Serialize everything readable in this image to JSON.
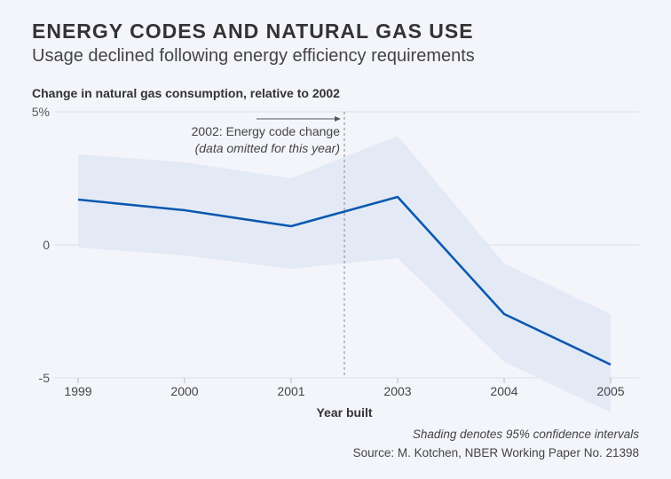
{
  "chart_data": {
    "type": "line",
    "title": "ENERGY CODES AND NATURAL GAS USE",
    "subtitle": "Usage declined following energy efficiency requirements",
    "ylabel": "Change in natural gas consumption, relative to 2002",
    "xlabel": "Year built",
    "categories": [
      "1999",
      "2000",
      "2001",
      "2003",
      "2004",
      "2005"
    ],
    "series": [
      {
        "name": "Change in natural gas consumption",
        "values": [
          1.7,
          1.3,
          0.7,
          1.8,
          -2.6,
          -4.5
        ]
      },
      {
        "name": "95% CI upper",
        "values": [
          3.4,
          3.1,
          2.5,
          4.1,
          -0.7,
          -2.6
        ]
      },
      {
        "name": "95% CI lower",
        "values": [
          -0.1,
          -0.4,
          -0.9,
          -0.5,
          -4.4,
          -6.3
        ]
      }
    ],
    "yticks": [
      {
        "v": 5,
        "label": "5%"
      },
      {
        "v": 0,
        "label": "0"
      },
      {
        "v": -5,
        "label": "-5"
      }
    ],
    "ylim": [
      -5,
      5
    ],
    "annotation": {
      "label": "2002: Energy code change",
      "sublabel": "(data omitted for this year)"
    },
    "colors": {
      "line": "#0b58b0",
      "band": "#e3eaf5",
      "grid": "#dcdfe6"
    },
    "notes": [
      "Shading denotes 95% confidence intervals",
      "Source: M. Kotchen, NBER Working Paper No. 21398"
    ]
  }
}
